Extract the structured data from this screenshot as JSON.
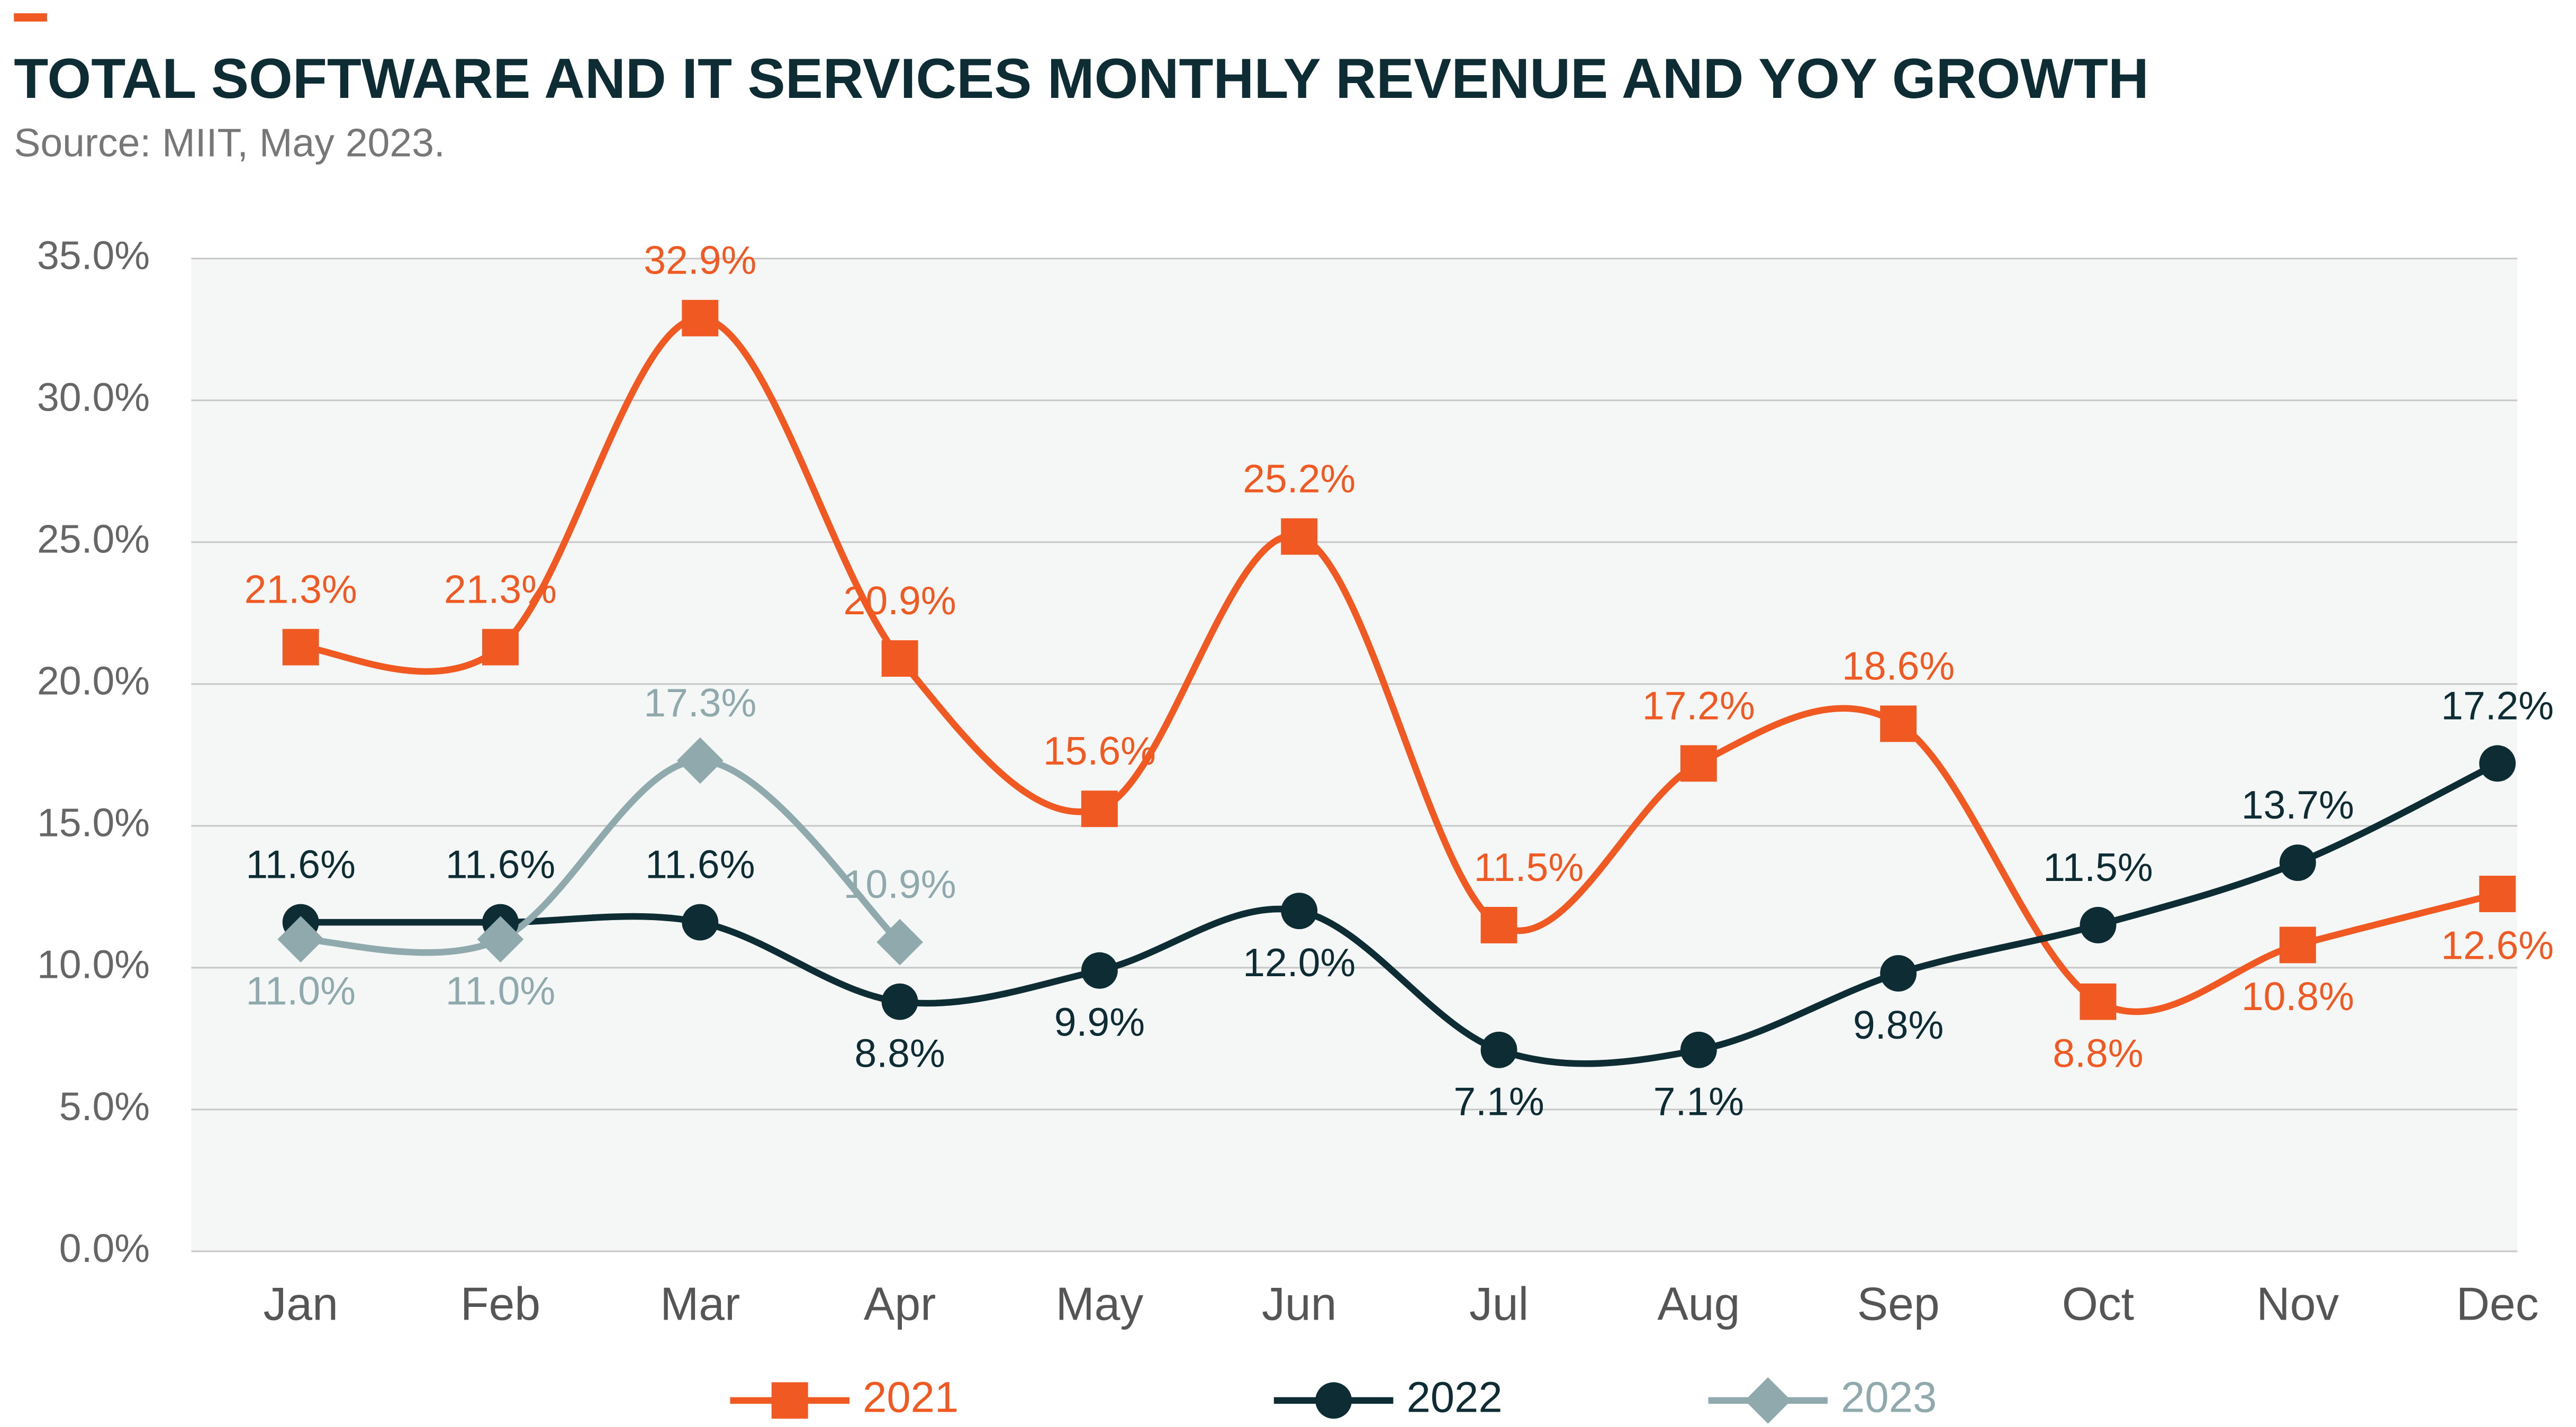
{
  "chart_data": {
    "type": "line",
    "title": "TOTAL SOFTWARE AND IT SERVICES MONTHLY REVENUE AND YOY GROWTH",
    "subtitle": "Source: MIIT, May 2023.",
    "categories": [
      "Jan",
      "Feb",
      "Mar",
      "Apr",
      "May",
      "Jun",
      "Jul",
      "Aug",
      "Sep",
      "Oct",
      "Nov",
      "Dec"
    ],
    "series": [
      {
        "name": "2021",
        "color": "#f05a22",
        "marker": "square",
        "values": [
          21.3,
          21.3,
          32.9,
          20.9,
          15.6,
          25.2,
          11.5,
          17.2,
          18.6,
          8.8,
          10.8,
          12.6
        ],
        "value_labels": [
          "21.3%",
          "21.3%",
          "32.9%",
          "20.9%",
          "15.6%",
          "25.2%",
          "11.5%",
          "17.2%",
          "18.6%",
          "8.8%",
          "10.8%",
          "12.6%"
        ]
      },
      {
        "name": "2022",
        "color": "#0d2c33",
        "marker": "circle",
        "values": [
          11.6,
          11.6,
          11.6,
          8.8,
          9.9,
          12.0,
          7.1,
          7.1,
          9.8,
          11.5,
          13.7,
          17.2
        ],
        "value_labels": [
          "11.6%",
          "11.6%",
          "11.6%",
          "8.8%",
          "9.9%",
          "12.0%",
          "7.1%",
          "7.1%",
          "9.8%",
          "11.5%",
          "13.7%",
          "17.2%"
        ]
      },
      {
        "name": "2023",
        "color": "#8fa9ad",
        "marker": "diamond",
        "values": [
          11.0,
          11.0,
          17.3,
          10.9,
          null,
          null,
          null,
          null,
          null,
          null,
          null,
          null
        ],
        "value_labels": [
          "11.0%",
          "11.0%",
          "17.3%",
          "10.9%",
          null,
          null,
          null,
          null,
          null,
          null,
          null,
          null
        ]
      }
    ],
    "ylim": [
      0,
      35
    ],
    "yticks": [
      {
        "value": 0,
        "label": "0.0%"
      },
      {
        "value": 5,
        "label": "5.0%"
      },
      {
        "value": 10,
        "label": "10.0%"
      },
      {
        "value": 15,
        "label": "15.0%"
      },
      {
        "value": 20,
        "label": "20.0%"
      },
      {
        "value": 25,
        "label": "25.0%"
      },
      {
        "value": 30,
        "label": "30.0%"
      },
      {
        "value": 35,
        "label": "35.0%"
      }
    ],
    "grid": true,
    "legend": "bottom"
  }
}
